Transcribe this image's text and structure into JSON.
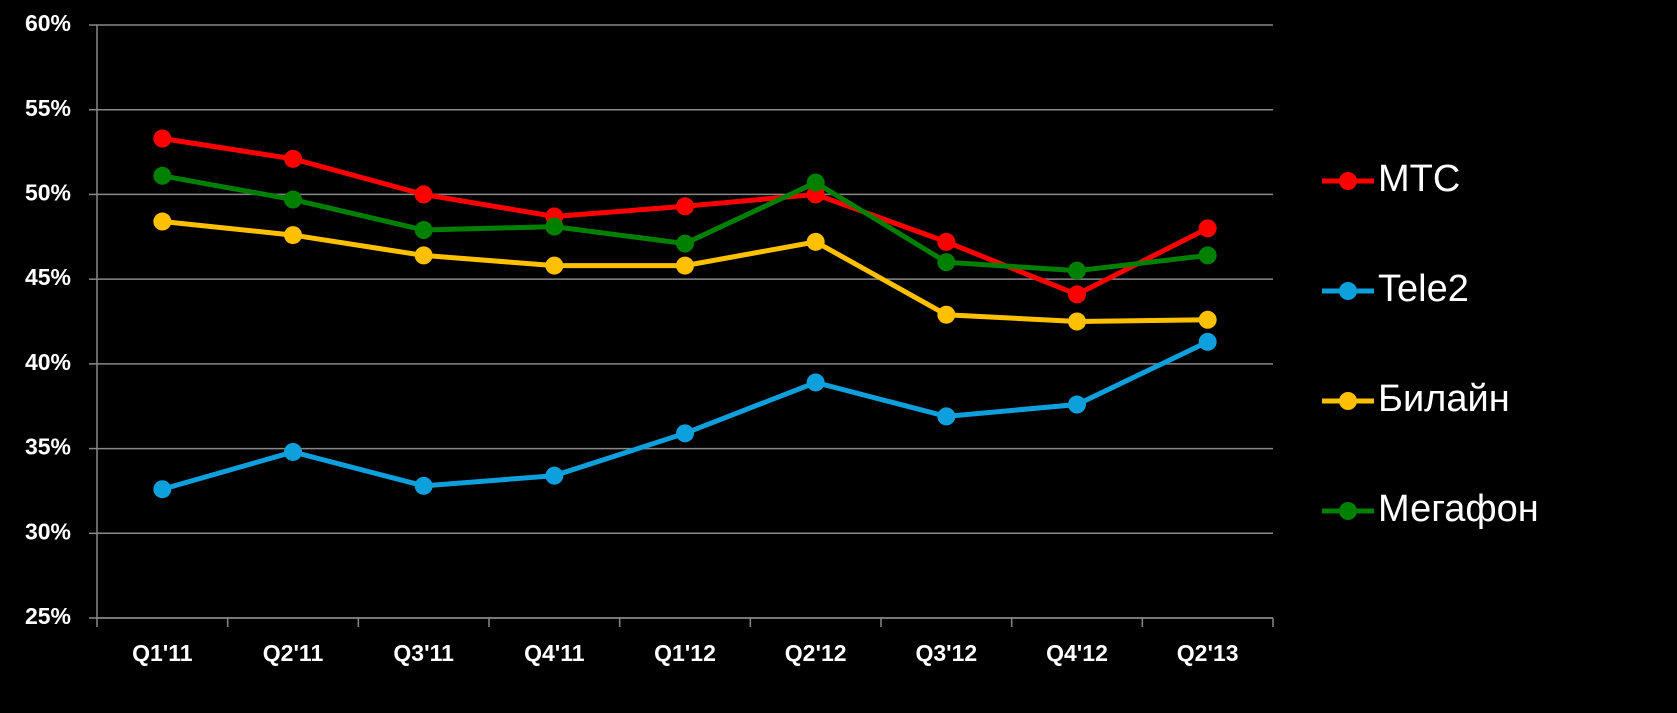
{
  "chart_data": {
    "type": "line",
    "categories": [
      "Q1'11",
      "Q2'11",
      "Q3'11",
      "Q4'11",
      "Q1'12",
      "Q2'12",
      "Q3'12",
      "Q4'12",
      "Q2'13"
    ],
    "series": [
      {
        "name": "МТС",
        "color": "#ff0000",
        "values": [
          53.3,
          52.1,
          50.0,
          48.7,
          49.3,
          50.0,
          47.2,
          44.1,
          48.0
        ]
      },
      {
        "name": "Tele2",
        "color": "#0ea0dc",
        "values": [
          32.6,
          34.8,
          32.8,
          33.4,
          35.9,
          38.9,
          36.9,
          37.6,
          41.3
        ]
      },
      {
        "name": "Билайн",
        "color": "#ffc000",
        "values": [
          48.4,
          47.6,
          46.4,
          45.8,
          45.8,
          47.2,
          42.9,
          42.5,
          42.6
        ]
      },
      {
        "name": "Мегафон",
        "color": "#008000",
        "values": [
          51.1,
          49.7,
          47.9,
          48.1,
          47.1,
          50.7,
          46.0,
          45.5,
          46.4
        ]
      }
    ],
    "ylim": [
      25,
      60
    ],
    "yticks": [
      {
        "value": 25,
        "label": "25%"
      },
      {
        "value": 30,
        "label": "30%"
      },
      {
        "value": 35,
        "label": "35%"
      },
      {
        "value": 40,
        "label": "40%"
      },
      {
        "value": 45,
        "label": "45%"
      },
      {
        "value": 50,
        "label": "50%"
      },
      {
        "value": 55,
        "label": "55%"
      },
      {
        "value": 60,
        "label": "60%"
      }
    ],
    "grid": true,
    "legend": "right"
  }
}
